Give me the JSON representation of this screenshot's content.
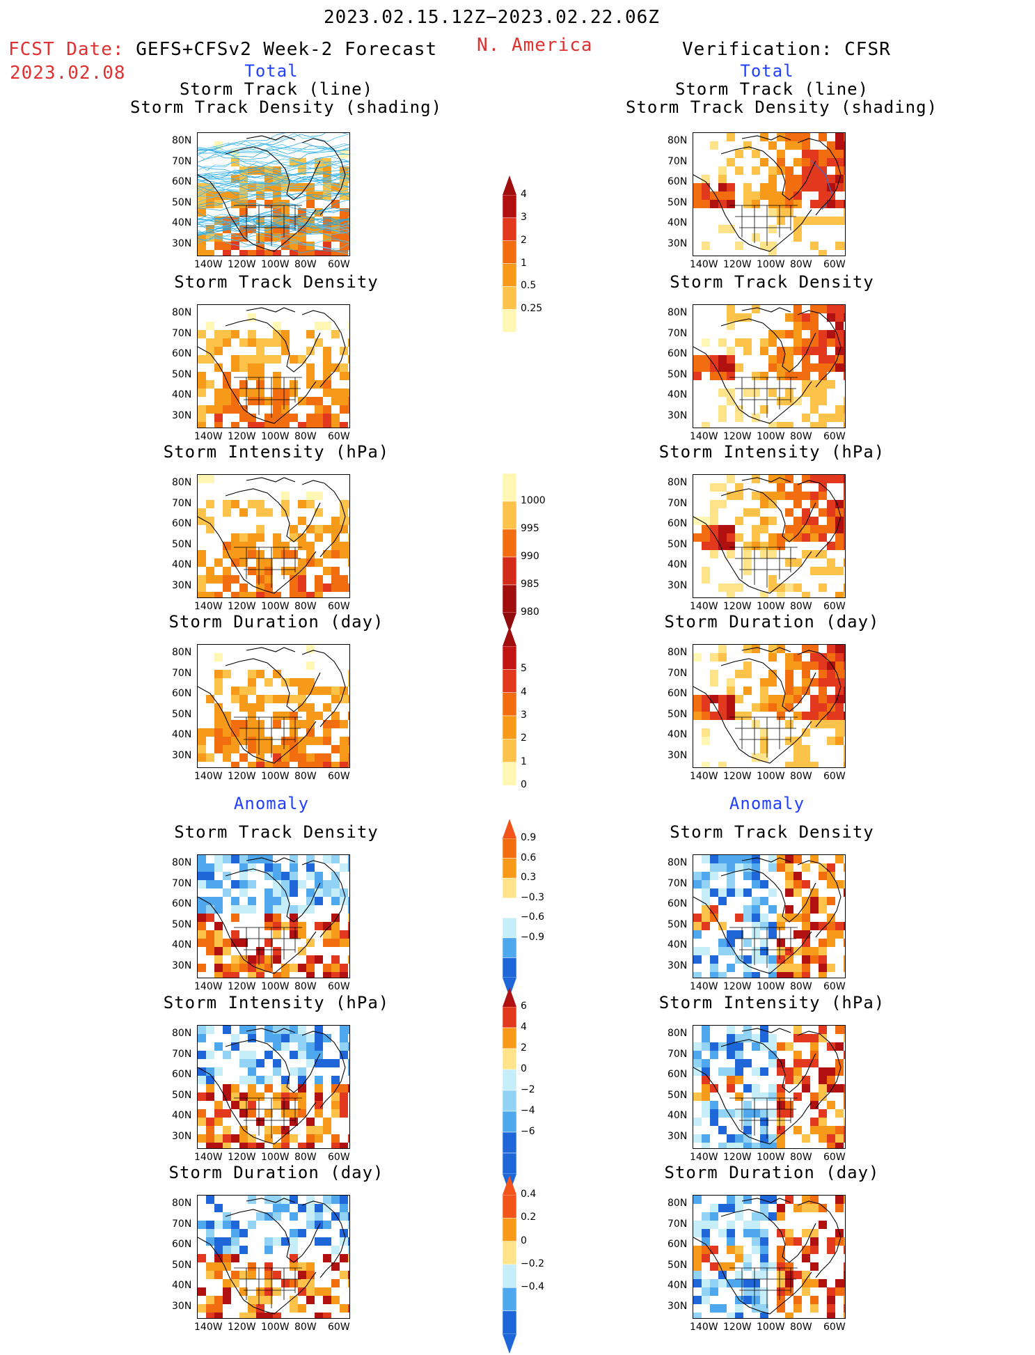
{
  "header": {
    "date_range": "2023.02.15.12Z−2023.02.22.06Z",
    "region": "N. America",
    "fcst_label": "FCST Date:",
    "fcst_source": "GEFS+CFSv2 Week-2 Forecast",
    "fcst_date": "2023.02.08",
    "verification": "Verification: CFSR"
  },
  "sections": {
    "total": "Total",
    "anomaly": "Anomaly"
  },
  "panel_titles": {
    "track_line": "Storm Track (line)",
    "track_shading": "Storm Track Density (shading)",
    "density": "Storm Track Density",
    "intensity": "Storm Intensity (hPa)",
    "duration": "Storm Duration (day)"
  },
  "axes": {
    "lat_labels": [
      "80N",
      "70N",
      "60N",
      "50N",
      "40N",
      "30N"
    ],
    "lon_labels": [
      "140W",
      "120W",
      "100W",
      "80W",
      "60W"
    ]
  },
  "colorbars": {
    "density_total": [
      "4",
      "3",
      "2",
      "1",
      "0.5",
      "0.25"
    ],
    "intensity_total": [
      "1000",
      "995",
      "990",
      "985",
      "980"
    ],
    "duration_total": [
      "5",
      "4",
      "3",
      "2",
      "1",
      "0"
    ],
    "density_anom": [
      "0.9",
      "0.6",
      "0.3",
      "−0.3",
      "−0.6",
      "−0.9"
    ],
    "intensity_anom": [
      "6",
      "4",
      "2",
      "0",
      "−2",
      "−4",
      "−6"
    ],
    "duration_anom": [
      "0.4",
      "0.2",
      "0",
      "−0.2",
      "−0.4"
    ]
  },
  "colors": {
    "header_red": "#e03030",
    "section_blue": "#2040ff",
    "warm": [
      "#fff7b3",
      "#ffe38a",
      "#fcc24a",
      "#f79a1a",
      "#f26d10",
      "#e2381d",
      "#b01010"
    ],
    "cool": [
      "#c6eef8",
      "#92d2f5",
      "#4fa8ee",
      "#1f66d8"
    ]
  }
}
